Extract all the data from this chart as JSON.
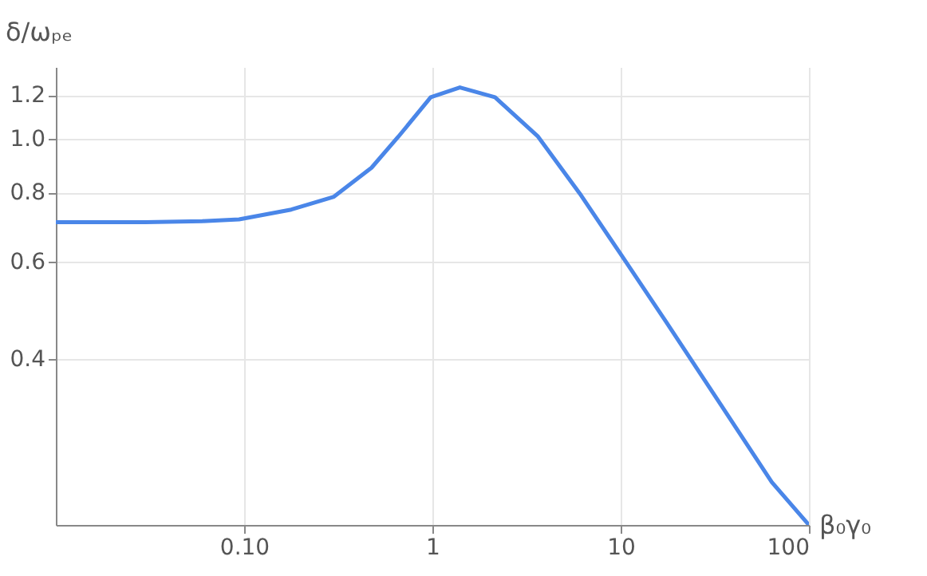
{
  "chart_data": {
    "type": "line",
    "xlabel": "β₀γ₀",
    "ylabel": "δ/ωₚₑ",
    "log": "xy",
    "grid": true,
    "xlim": [
      0.01,
      100
    ],
    "ylim": [
      0.2,
      1.35
    ],
    "xticks": [
      {
        "value": 0.1,
        "label": "0.10"
      },
      1,
      10,
      100
    ],
    "yticks": [
      0.4,
      0.6,
      0.8,
      {
        "value": 1,
        "label": "1.0"
      },
      1.2
    ],
    "x": [
      0.01,
      0.03,
      0.06,
      0.094,
      0.178,
      0.3,
      0.475,
      0.66,
      0.98,
      1.4,
      2.15,
      3.64,
      6.06,
      9.9,
      17.4,
      33.3,
      63.5,
      100
    ],
    "series": [
      {
        "color": "#4a86e8",
        "values": [
          0.707,
          0.707,
          0.71,
          0.715,
          0.745,
          0.786,
          0.887,
          1.01,
          1.19,
          1.24,
          1.19,
          1.01,
          0.797,
          0.622,
          0.467,
          0.334,
          0.239,
          0.2
        ]
      }
    ]
  }
}
